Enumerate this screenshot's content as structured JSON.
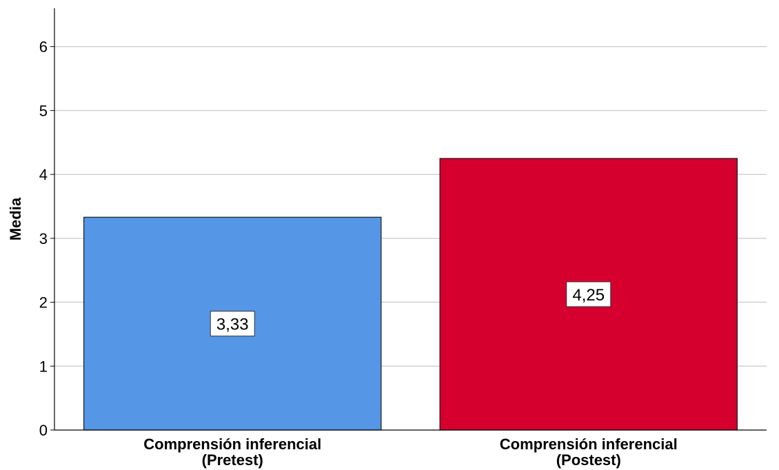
{
  "chart_data": {
    "type": "bar",
    "categories": [
      [
        "Comprensión inferencial",
        "(Pretest)"
      ],
      [
        "Comprensión inferencial",
        "(Postest)"
      ]
    ],
    "values": [
      3.33,
      4.25
    ],
    "value_labels": [
      "3,33",
      "4,25"
    ],
    "bar_colors": [
      "#5596e6",
      "#d6002f"
    ],
    "title": "",
    "xlabel": "",
    "ylabel": "Media",
    "ylim": [
      0,
      6.6
    ],
    "yticks": [
      0,
      1,
      2,
      3,
      4,
      5,
      6
    ],
    "grid": true,
    "legend": "none"
  },
  "colors": {
    "grid": "#d0d0d0",
    "axis": "#000000",
    "bar_stroke": "#1a1a1a"
  }
}
